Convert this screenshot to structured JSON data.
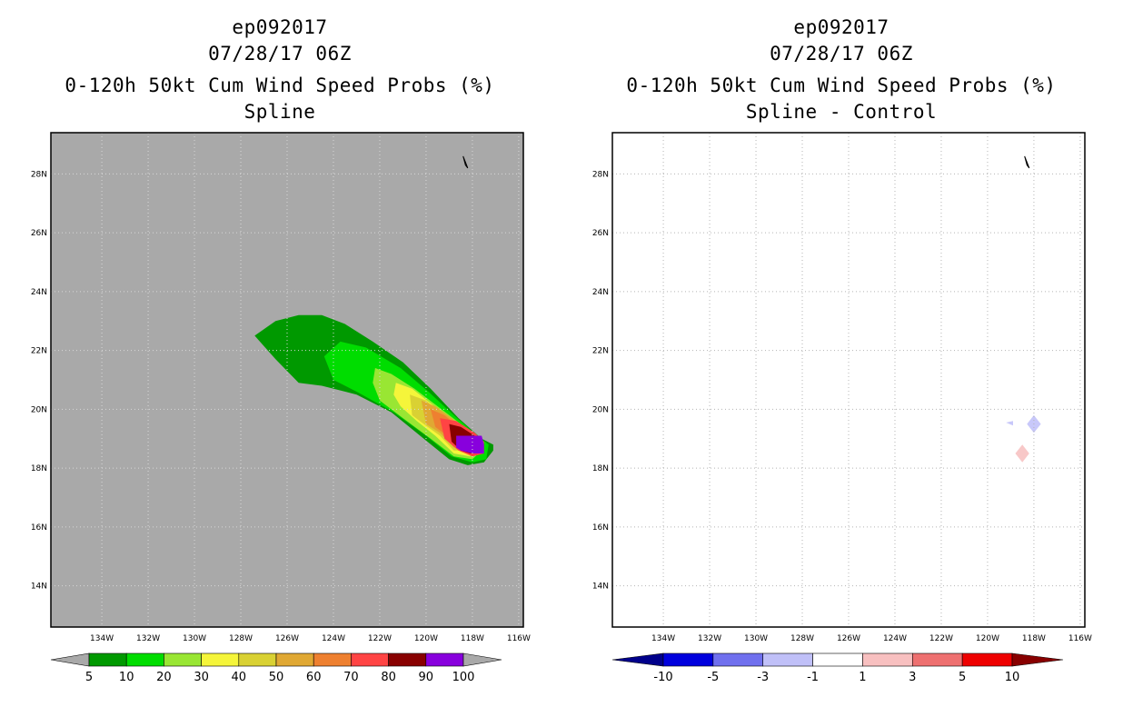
{
  "chart_data": [
    {
      "type": "map-filled-contour",
      "storm_id": "ep092017",
      "datetime": "07/28/17 06Z",
      "title": "0-120h 50kt Cum Wind Speed Probs (%)",
      "subtitle": "Spline",
      "background_color": "#a9a9a9",
      "x_ticks": [
        "134W",
        "132W",
        "130W",
        "128W",
        "126W",
        "124W",
        "122W",
        "120W",
        "118W",
        "116W"
      ],
      "y_ticks": [
        "28N",
        "26N",
        "24N",
        "22N",
        "20N",
        "18N",
        "16N",
        "14N"
      ],
      "x_range_deg_w": [
        136.2,
        115.8
      ],
      "y_range_deg_n": [
        12.6,
        29.4
      ],
      "colorbar": {
        "labels": [
          "5",
          "10",
          "20",
          "30",
          "40",
          "50",
          "60",
          "70",
          "80",
          "90",
          "100"
        ],
        "colors": [
          "#009900",
          "#00dd00",
          "#99e633",
          "#f5f53a",
          "#d9d133",
          "#e0a833",
          "#ee8030",
          "#ff4444",
          "#880000",
          "#8800dd"
        ],
        "end_color": "#a9a9a9"
      },
      "contours": [
        {
          "min": 5,
          "color": "#009900",
          "points": [
            [
              127.4,
              22.5
            ],
            [
              126.5,
              23.0
            ],
            [
              125.5,
              23.2
            ],
            [
              124.5,
              23.2
            ],
            [
              123.5,
              22.9
            ],
            [
              122.3,
              22.3
            ],
            [
              121.0,
              21.6
            ],
            [
              119.8,
              20.7
            ],
            [
              118.6,
              19.7
            ],
            [
              117.6,
              19.0
            ],
            [
              117.1,
              18.8
            ],
            [
              117.1,
              18.6
            ],
            [
              117.5,
              18.2
            ],
            [
              118.2,
              18.1
            ],
            [
              119.0,
              18.3
            ],
            [
              120.1,
              19.0
            ],
            [
              121.5,
              19.9
            ],
            [
              123.0,
              20.5
            ],
            [
              124.5,
              20.8
            ],
            [
              125.5,
              20.9
            ],
            [
              126.5,
              21.7
            ],
            [
              127.4,
              22.5
            ]
          ]
        },
        {
          "min": 10,
          "color": "#00dd00",
          "points": [
            [
              124.4,
              21.8
            ],
            [
              123.7,
              22.3
            ],
            [
              122.6,
              22.1
            ],
            [
              121.1,
              21.4
            ],
            [
              119.9,
              20.6
            ],
            [
              118.8,
              19.8
            ],
            [
              117.8,
              19.1
            ],
            [
              117.3,
              18.8
            ],
            [
              117.4,
              18.3
            ],
            [
              118.0,
              18.2
            ],
            [
              118.9,
              18.4
            ],
            [
              120.0,
              19.1
            ],
            [
              121.4,
              19.9
            ],
            [
              123.0,
              20.6
            ],
            [
              124.0,
              21.0
            ],
            [
              124.4,
              21.8
            ]
          ]
        },
        {
          "min": 20,
          "color": "#99e633",
          "points": [
            [
              122.2,
              21.4
            ],
            [
              121.5,
              21.2
            ],
            [
              120.5,
              20.7
            ],
            [
              119.5,
              20.1
            ],
            [
              118.5,
              19.5
            ],
            [
              117.8,
              19.0
            ],
            [
              117.6,
              18.6
            ],
            [
              118.0,
              18.3
            ],
            [
              118.8,
              18.4
            ],
            [
              119.8,
              19.0
            ],
            [
              121.0,
              19.7
            ],
            [
              122.0,
              20.3
            ],
            [
              122.3,
              20.9
            ],
            [
              122.2,
              21.4
            ]
          ]
        },
        {
          "min": 30,
          "color": "#f5f53a",
          "points": [
            [
              121.3,
              20.9
            ],
            [
              120.6,
              20.7
            ],
            [
              119.8,
              20.2
            ],
            [
              119.0,
              19.7
            ],
            [
              118.3,
              19.2
            ],
            [
              117.9,
              18.8
            ],
            [
              118.1,
              18.4
            ],
            [
              118.8,
              18.5
            ],
            [
              119.6,
              19.1
            ],
            [
              120.4,
              19.6
            ],
            [
              121.1,
              20.1
            ],
            [
              121.4,
              20.5
            ],
            [
              121.3,
              20.9
            ]
          ]
        },
        {
          "min": 40,
          "color": "#d9d133",
          "points": [
            [
              120.7,
              20.5
            ],
            [
              120.0,
              20.3
            ],
            [
              119.4,
              19.9
            ],
            [
              118.8,
              19.5
            ],
            [
              118.2,
              19.1
            ],
            [
              118.2,
              18.6
            ],
            [
              118.8,
              18.6
            ],
            [
              119.4,
              19.1
            ],
            [
              120.1,
              19.5
            ],
            [
              120.6,
              19.8
            ],
            [
              120.7,
              20.5
            ]
          ]
        },
        {
          "min": 50,
          "color": "#e0a833",
          "points": [
            [
              120.2,
              20.3
            ],
            [
              119.6,
              20.1
            ],
            [
              118.9,
              19.7
            ],
            [
              118.3,
              19.3
            ],
            [
              118.3,
              18.7
            ],
            [
              118.8,
              18.7
            ],
            [
              119.4,
              19.2
            ],
            [
              120.0,
              19.5
            ],
            [
              120.2,
              20.3
            ]
          ]
        },
        {
          "min": 60,
          "color": "#ee8030",
          "points": [
            [
              119.8,
              20.0
            ],
            [
              119.2,
              19.8
            ],
            [
              118.6,
              19.4
            ],
            [
              118.3,
              19.0
            ],
            [
              118.6,
              18.8
            ],
            [
              119.1,
              19.1
            ],
            [
              119.6,
              19.4
            ],
            [
              119.8,
              20.0
            ]
          ]
        },
        {
          "min": 70,
          "color": "#ff4444",
          "points": [
            [
              119.4,
              19.7
            ],
            [
              118.7,
              19.6
            ],
            [
              117.9,
              19.2
            ],
            [
              117.5,
              18.9
            ],
            [
              117.5,
              18.5
            ],
            [
              118.0,
              18.4
            ],
            [
              118.6,
              18.6
            ],
            [
              119.2,
              19.0
            ],
            [
              119.4,
              19.7
            ]
          ]
        },
        {
          "min": 80,
          "color": "#880000",
          "points": [
            [
              119.0,
              19.5
            ],
            [
              118.5,
              19.4
            ],
            [
              117.9,
              19.1
            ],
            [
              117.6,
              18.8
            ],
            [
              117.7,
              18.5
            ],
            [
              118.1,
              18.5
            ],
            [
              118.5,
              18.6
            ],
            [
              118.9,
              18.9
            ],
            [
              119.0,
              19.5
            ]
          ]
        },
        {
          "min": 90,
          "color": "#8800dd",
          "points": [
            [
              118.7,
              19.1
            ],
            [
              117.6,
              19.1
            ],
            [
              117.5,
              18.8
            ],
            [
              117.5,
              18.5
            ],
            [
              118.0,
              18.5
            ],
            [
              118.5,
              18.6
            ],
            [
              118.7,
              18.7
            ],
            [
              118.7,
              19.1
            ]
          ]
        }
      ],
      "island": [
        [
          118.4,
          28.6
        ],
        [
          118.3,
          28.4
        ],
        [
          118.2,
          28.2
        ],
        [
          118.3,
          28.3
        ],
        [
          118.4,
          28.6
        ]
      ]
    },
    {
      "type": "map-filled-contour",
      "storm_id": "ep092017",
      "datetime": "07/28/17 06Z",
      "title": "0-120h 50kt Cum Wind Speed Probs (%)",
      "subtitle": "Spline - Control",
      "background_color": "#ffffff",
      "grid": true,
      "x_ticks": [
        "134W",
        "132W",
        "130W",
        "128W",
        "126W",
        "124W",
        "122W",
        "120W",
        "118W",
        "116W"
      ],
      "y_ticks": [
        "28N",
        "26N",
        "24N",
        "22N",
        "20N",
        "18N",
        "16N",
        "14N"
      ],
      "x_range_deg_w": [
        136.2,
        115.8
      ],
      "y_range_deg_n": [
        12.6,
        29.4
      ],
      "colorbar": {
        "labels": [
          "-10",
          "-5",
          "-3",
          "-1",
          "1",
          "3",
          "5",
          "10"
        ],
        "colors": [
          "#0000dd",
          "#7070ee",
          "#c0c0f8",
          "#ffffff",
          "#f8c0c0",
          "#ee7070",
          "#ee0000"
        ],
        "end_colors": [
          "#00008b",
          "#880000"
        ]
      },
      "contours": [
        {
          "range": "-3 to -1",
          "color": "#c8c8fa",
          "points": [
            [
              118.3,
              19.5
            ],
            [
              118.0,
              19.8
            ],
            [
              117.7,
              19.5
            ],
            [
              118.0,
              19.2
            ],
            [
              118.3,
              19.5
            ]
          ]
        },
        {
          "range": "-3 to -1",
          "color": "#c8c8fa",
          "points": [
            [
              119.2,
              19.55
            ],
            [
              118.9,
              19.6
            ],
            [
              118.9,
              19.45
            ],
            [
              119.2,
              19.55
            ]
          ]
        },
        {
          "range": "1 to 3",
          "color": "#f8c8c8",
          "points": [
            [
              118.8,
              18.5
            ],
            [
              118.5,
              18.8
            ],
            [
              118.2,
              18.5
            ],
            [
              118.5,
              18.2
            ],
            [
              118.8,
              18.5
            ]
          ]
        }
      ],
      "island": [
        [
          118.4,
          28.6
        ],
        [
          118.3,
          28.4
        ],
        [
          118.2,
          28.2
        ],
        [
          118.3,
          28.3
        ],
        [
          118.4,
          28.6
        ]
      ]
    }
  ]
}
